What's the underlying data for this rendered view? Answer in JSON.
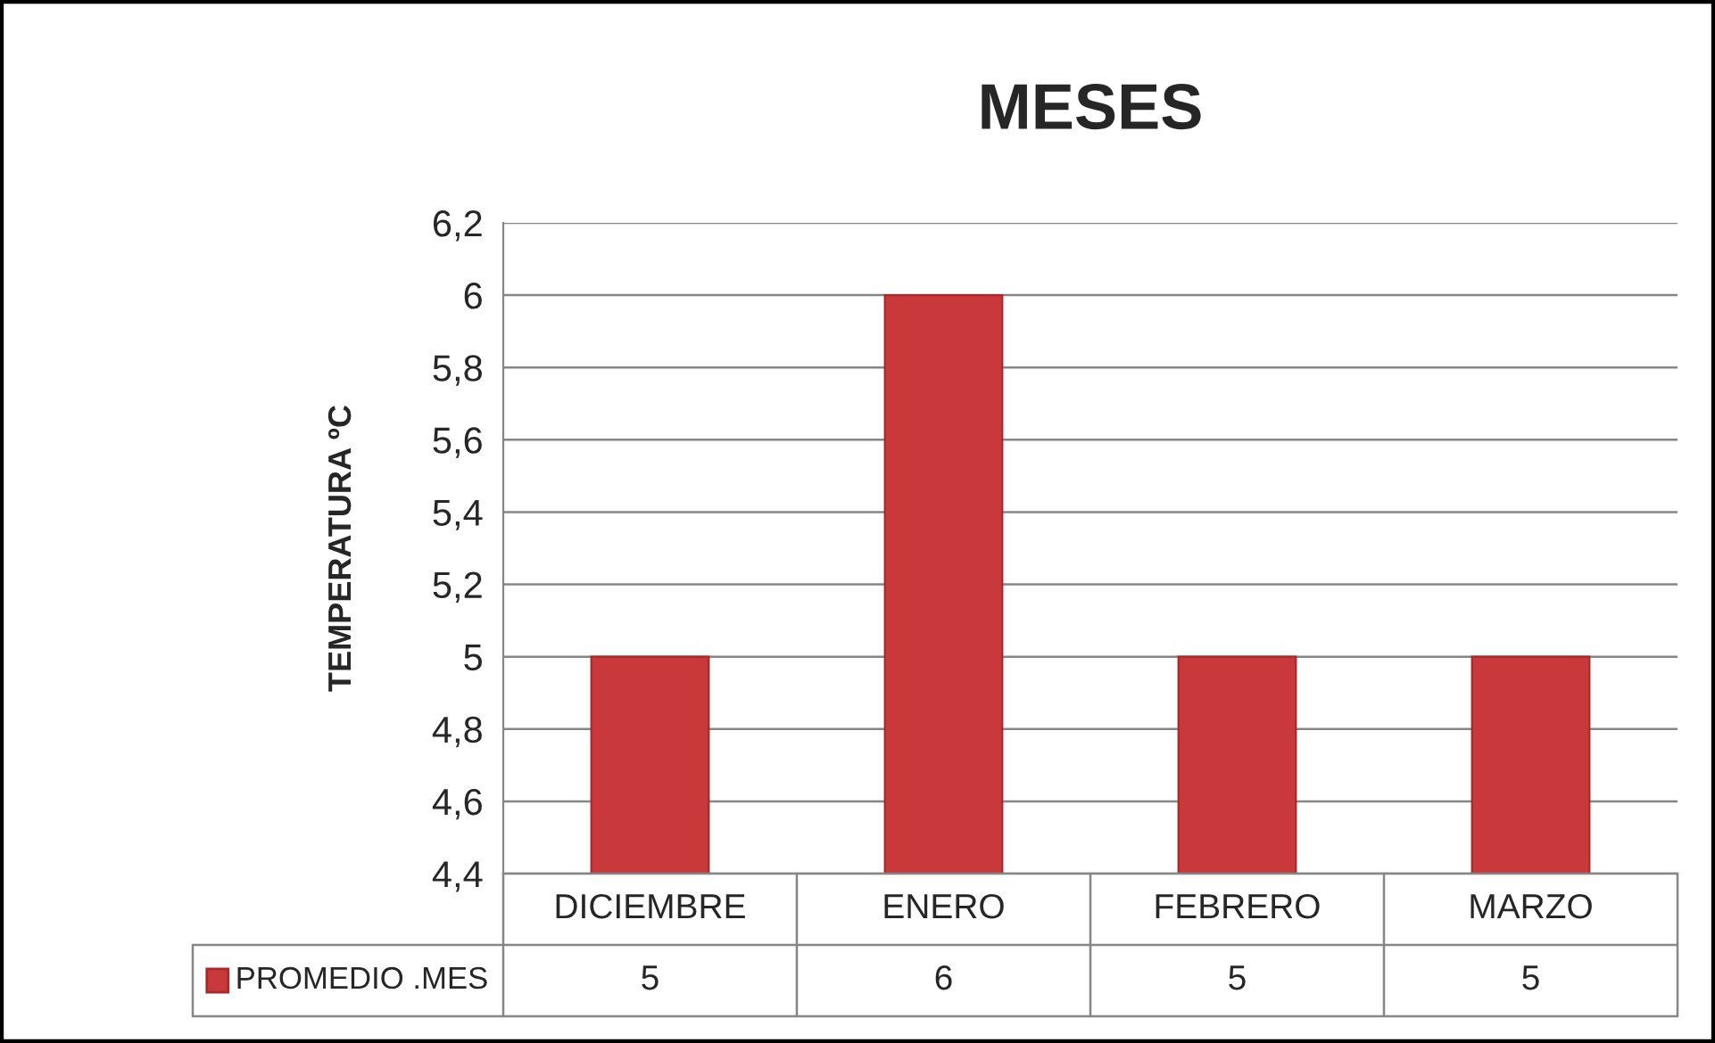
{
  "chart_data": {
    "type": "bar",
    "title": "MESES",
    "ylabel": "TEMPERATURA ºC",
    "categories": [
      "DICIEMBRE",
      "ENERO",
      "FEBRERO",
      "MARZO"
    ],
    "series": [
      {
        "name": "PROMEDIO .MES",
        "color": "#c9383a",
        "values": [
          5,
          6,
          5,
          5
        ]
      }
    ],
    "ylim": [
      4.4,
      6.2
    ],
    "yticks": [
      {
        "value": 4.4,
        "label": "4,4"
      },
      {
        "value": 4.6,
        "label": "4,6"
      },
      {
        "value": 4.8,
        "label": "4,8"
      },
      5,
      {
        "value": 5.2,
        "label": "5,2"
      },
      {
        "value": 5.4,
        "label": "5,4"
      },
      {
        "value": 5.6,
        "label": "5,6"
      },
      {
        "value": 5.8,
        "label": "5,8"
      },
      6,
      {
        "value": 6.2,
        "label": "6,2"
      }
    ],
    "grid": "y",
    "legend": "bottom left",
    "data_labels": true
  }
}
